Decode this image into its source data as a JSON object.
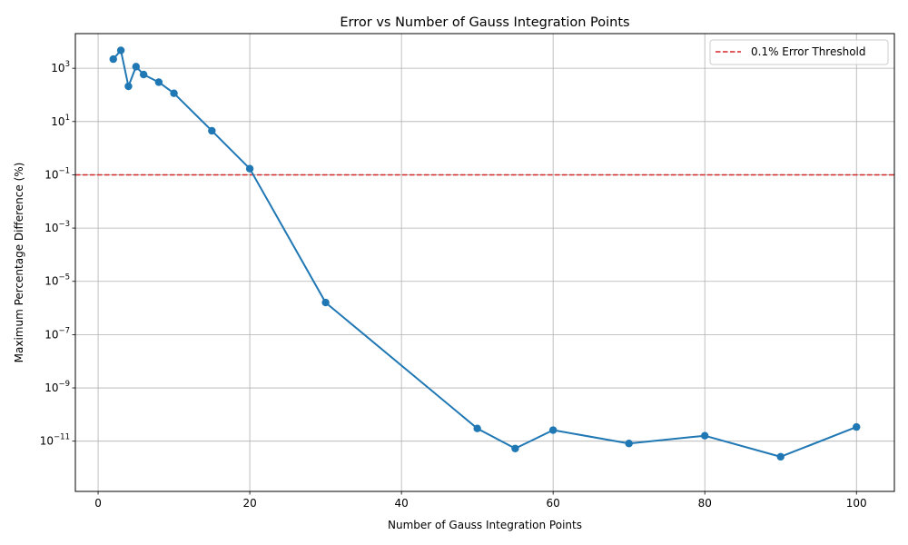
{
  "chart_data": {
    "type": "line",
    "title": "Error vs Number of Gauss Integration Points",
    "xlabel": "Number of Gauss Integration Points",
    "ylabel": "Maximum Percentage Difference (%)",
    "xlim": [
      -3,
      105
    ],
    "ylim": [
      1.3e-13,
      20000.0
    ],
    "yscale": "log",
    "grid": true,
    "legend_position": "top-right",
    "x_ticks": [
      0,
      20,
      40,
      60,
      80,
      100
    ],
    "y_ticks": [
      {
        "value": 1e-11,
        "base": "10",
        "exp": "−11"
      },
      {
        "value": 1e-09,
        "base": "10",
        "exp": "−9"
      },
      {
        "value": 1e-07,
        "base": "10",
        "exp": "−7"
      },
      {
        "value": 1e-05,
        "base": "10",
        "exp": "−5"
      },
      {
        "value": 0.001,
        "base": "10",
        "exp": "−3"
      },
      {
        "value": 0.1,
        "base": "10",
        "exp": "−1"
      },
      {
        "value": 10.0,
        "base": "10",
        "exp": "1"
      },
      {
        "value": 1000.0,
        "base": "10",
        "exp": "3"
      }
    ],
    "series": [
      {
        "color": "#1f77b4",
        "x": [
          2,
          3,
          4,
          5,
          6,
          8,
          10,
          15,
          20,
          30,
          50,
          55,
          60,
          70,
          80,
          90,
          100
        ],
        "y": [
          2200,
          4700,
          210,
          1150,
          580,
          300,
          115,
          4.5,
          0.17,
          1.6e-06,
          3e-11,
          5.3e-12,
          2.6e-11,
          8.2e-12,
          1.6e-11,
          2.6e-12,
          3.4e-11
        ]
      }
    ],
    "threshold": {
      "name": "0.1% Error Threshold",
      "value": 0.1,
      "color": "#d62728",
      "style": "dashed"
    }
  }
}
